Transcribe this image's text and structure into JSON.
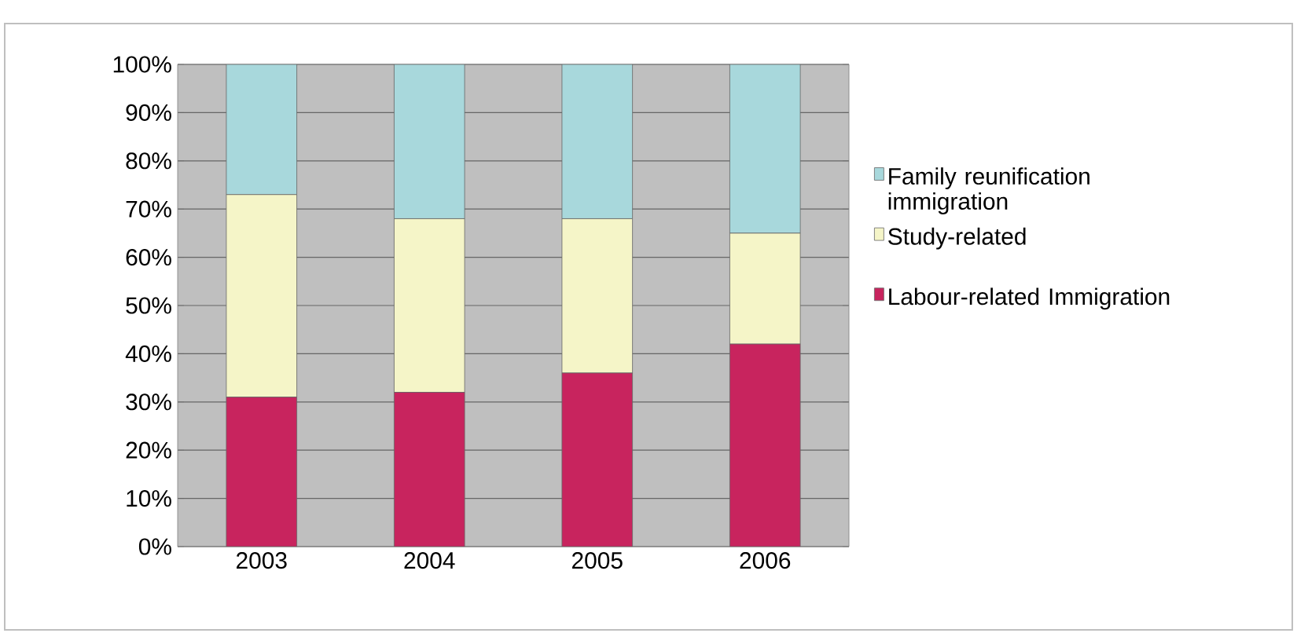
{
  "chart_data": {
    "type": "bar",
    "stacked": true,
    "categories": [
      "2003",
      "2004",
      "2005",
      "2006"
    ],
    "series": [
      {
        "name": "Labour-related Immigration",
        "color": "#c8245e",
        "values": [
          31,
          32,
          36,
          42
        ]
      },
      {
        "name": "Study-related",
        "color": "#f5f5c8",
        "values": [
          42,
          36,
          32,
          23
        ]
      },
      {
        "name": "Family reunification immigration",
        "color": "#a8d8dc",
        "values": [
          27,
          32,
          32,
          35
        ]
      }
    ],
    "ylim": [
      0,
      100
    ],
    "yticks": [
      {
        "value": 0,
        "label": "0%"
      },
      {
        "value": 10,
        "label": "10%"
      },
      {
        "value": 20,
        "label": "20%"
      },
      {
        "value": 30,
        "label": "30%"
      },
      {
        "value": 40,
        "label": "40%"
      },
      {
        "value": 50,
        "label": "50%"
      },
      {
        "value": 60,
        "label": "60%"
      },
      {
        "value": 70,
        "label": "70%"
      },
      {
        "value": 80,
        "label": "80%"
      },
      {
        "value": 90,
        "label": "90%"
      },
      {
        "value": 100,
        "label": "100%"
      }
    ],
    "grid": "y",
    "legend": "right"
  }
}
